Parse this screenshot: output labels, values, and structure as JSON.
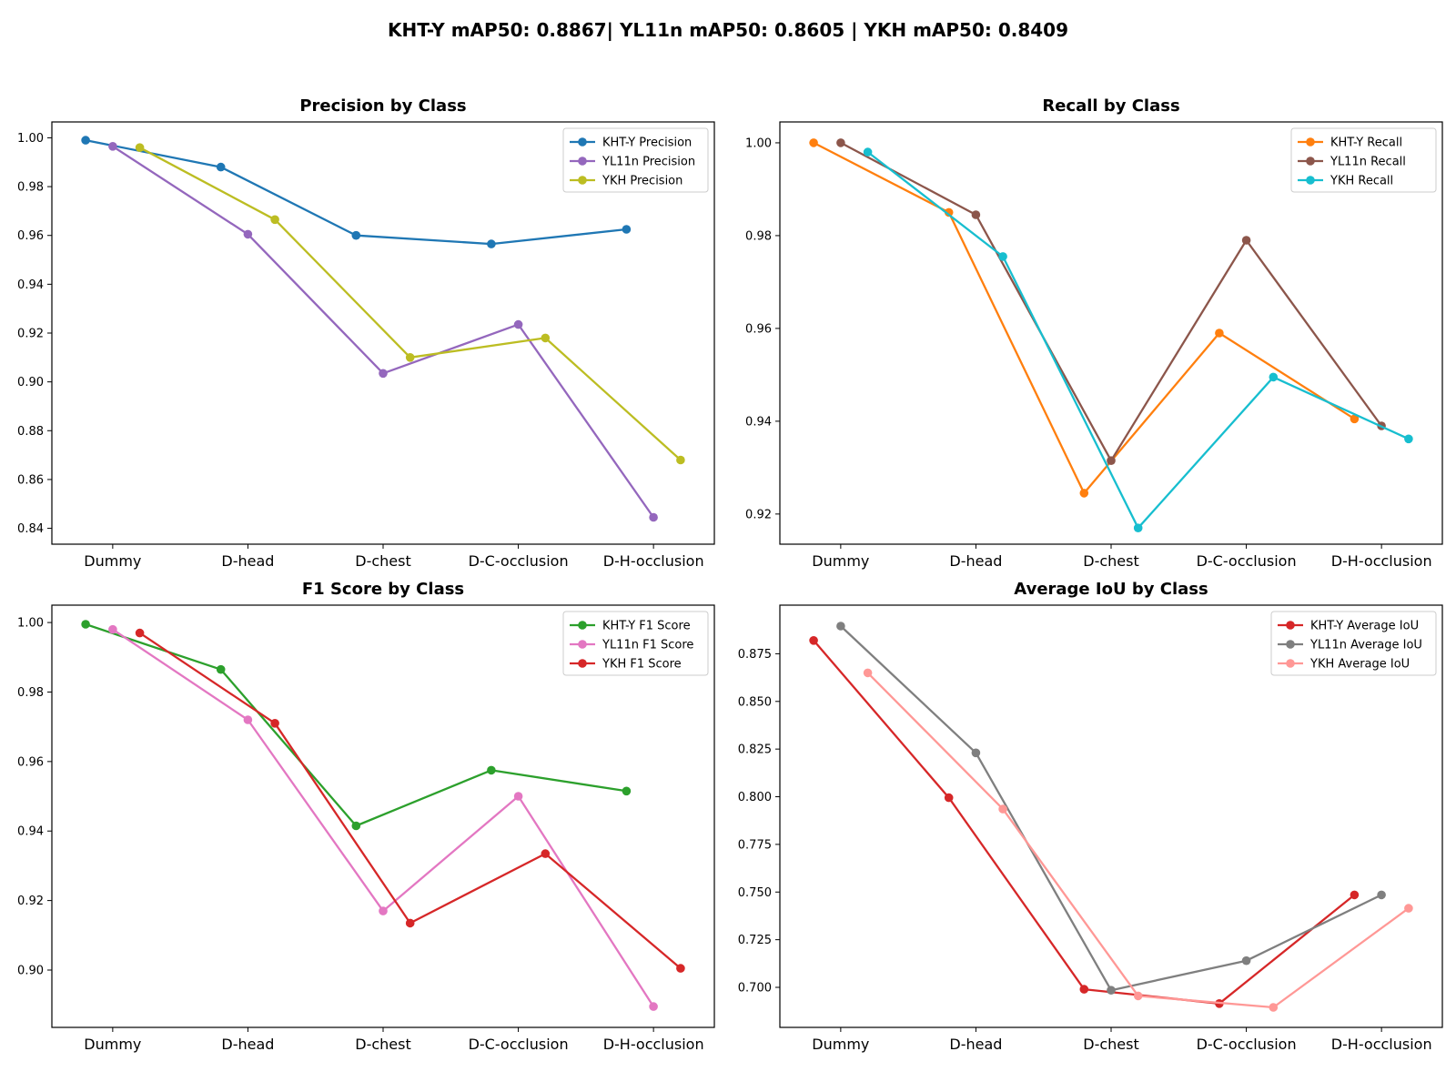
{
  "figure": {
    "suptitle": "KHT-Y mAP50: 0.8867| YL11n mAP50: 0.8605 | YKH mAP50: 0.8409"
  },
  "chart_data": [
    {
      "type": "line",
      "title": "Precision by Class",
      "categories": [
        "Dummy",
        "D-head",
        "D-chest",
        "D-C-occlusion",
        "D-H-occlusion"
      ],
      "ylim": [
        0.8335,
        1.0065
      ],
      "yticks": [
        "0.84",
        "0.86",
        "0.88",
        "0.90",
        "0.92",
        "0.94",
        "0.96",
        "0.98",
        "1.00"
      ],
      "ytick_values": [
        0.84,
        0.86,
        0.88,
        0.9,
        0.92,
        0.94,
        0.96,
        0.98,
        1.0
      ],
      "grid": false,
      "legend_position": "top-right",
      "series": [
        {
          "name": "KHT-Y Precision",
          "color": "#1f77b4",
          "offset": -0.2,
          "values": [
            0.999,
            0.988,
            0.96,
            0.9565,
            0.9625
          ]
        },
        {
          "name": "YL11n Precision",
          "color": "#9467bd",
          "offset": 0.0,
          "values": [
            0.9965,
            0.9605,
            0.9035,
            0.9235,
            0.8445
          ]
        },
        {
          "name": "YKH Precision",
          "color": "#bcbd22",
          "offset": 0.2,
          "values": [
            0.996,
            0.9665,
            0.91,
            0.918,
            0.868
          ]
        }
      ]
    },
    {
      "type": "line",
      "title": "Recall by Class",
      "categories": [
        "Dummy",
        "D-head",
        "D-chest",
        "D-C-occlusion",
        "D-H-occlusion"
      ],
      "ylim": [
        0.9135,
        1.0045
      ],
      "yticks": [
        "0.92",
        "0.94",
        "0.96",
        "0.98",
        "1.00"
      ],
      "ytick_values": [
        0.92,
        0.94,
        0.96,
        0.98,
        1.0
      ],
      "grid": false,
      "legend_position": "top-right",
      "series": [
        {
          "name": "KHT-Y Recall",
          "color": "#ff7f0e",
          "offset": -0.2,
          "values": [
            1.0,
            0.985,
            0.9245,
            0.959,
            0.9405
          ]
        },
        {
          "name": "YL11n Recall",
          "color": "#8c564b",
          "offset": 0.0,
          "values": [
            1.0,
            0.9845,
            0.9315,
            0.979,
            0.939
          ]
        },
        {
          "name": "YKH Recall",
          "color": "#17becf",
          "offset": 0.2,
          "values": [
            0.998,
            0.9755,
            0.917,
            0.9495,
            0.9362
          ]
        }
      ]
    },
    {
      "type": "line",
      "title": "F1 Score by Class",
      "categories": [
        "Dummy",
        "D-head",
        "D-chest",
        "D-C-occlusion",
        "D-H-occlusion"
      ],
      "ylim": [
        0.8835,
        1.005
      ],
      "yticks": [
        "0.90",
        "0.92",
        "0.94",
        "0.96",
        "0.98",
        "1.00"
      ],
      "ytick_values": [
        0.9,
        0.92,
        0.94,
        0.96,
        0.98,
        1.0
      ],
      "grid": false,
      "legend_position": "top-right",
      "series": [
        {
          "name": "KHT-Y F1 Score",
          "color": "#2ca02c",
          "offset": -0.2,
          "values": [
            0.9995,
            0.9865,
            0.9415,
            0.9575,
            0.9515
          ]
        },
        {
          "name": "YL11n F1 Score",
          "color": "#e377c2",
          "offset": 0.0,
          "values": [
            0.998,
            0.972,
            0.917,
            0.95,
            0.8895
          ]
        },
        {
          "name": "YKH F1 Score",
          "color": "#d62728",
          "offset": 0.2,
          "values": [
            0.997,
            0.971,
            0.9135,
            0.9335,
            0.9005
          ]
        }
      ]
    },
    {
      "type": "line",
      "title": "Average IoU by Class",
      "categories": [
        "Dummy",
        "D-head",
        "D-chest",
        "D-C-occlusion",
        "D-H-occlusion"
      ],
      "ylim": [
        0.679,
        0.9005
      ],
      "yticks": [
        "0.700",
        "0.725",
        "0.750",
        "0.775",
        "0.800",
        "0.825",
        "0.850",
        "0.875"
      ],
      "ytick_values": [
        0.7,
        0.725,
        0.75,
        0.775,
        0.8,
        0.825,
        0.85,
        0.875
      ],
      "grid": false,
      "legend_position": "top-right",
      "series": [
        {
          "name": "KHT-Y Average IoU",
          "color": "#d62728",
          "offset": -0.2,
          "values": [
            0.882,
            0.7995,
            0.699,
            0.6915,
            0.7485
          ]
        },
        {
          "name": "YL11n Average IoU",
          "color": "#7f7f7f",
          "offset": 0.0,
          "values": [
            0.8895,
            0.823,
            0.6985,
            0.714,
            0.7485
          ]
        },
        {
          "name": "YKH Average IoU",
          "color": "#ff9896",
          "offset": 0.2,
          "values": [
            0.865,
            0.7935,
            0.6955,
            0.6895,
            0.7415
          ]
        }
      ]
    }
  ]
}
